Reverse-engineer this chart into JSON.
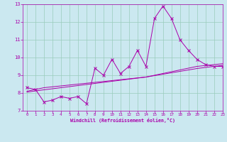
{
  "xlabel": "Windchill (Refroidissement éolien,°C)",
  "background_color": "#cbe8f0",
  "grid_color": "#99ccbb",
  "line_color": "#aa00aa",
  "x_values": [
    0,
    1,
    2,
    3,
    4,
    5,
    6,
    7,
    8,
    9,
    10,
    11,
    12,
    13,
    14,
    15,
    16,
    17,
    18,
    19,
    20,
    21,
    22,
    23
  ],
  "y_main": [
    8.3,
    8.2,
    7.5,
    7.6,
    7.8,
    7.7,
    7.8,
    7.4,
    9.4,
    9.0,
    9.9,
    9.1,
    9.5,
    10.4,
    9.5,
    12.2,
    12.9,
    12.2,
    11.0,
    10.4,
    9.9,
    9.6,
    9.5,
    9.5
  ],
  "y_line2": [
    8.1,
    8.2,
    8.3,
    8.35,
    8.4,
    8.45,
    8.5,
    8.55,
    8.6,
    8.65,
    8.7,
    8.75,
    8.8,
    8.85,
    8.9,
    9.0,
    9.1,
    9.2,
    9.3,
    9.4,
    9.5,
    9.55,
    9.6,
    9.65
  ],
  "y_line3": [
    8.05,
    8.12,
    8.18,
    8.24,
    8.3,
    8.36,
    8.42,
    8.48,
    8.54,
    8.6,
    8.66,
    8.72,
    8.78,
    8.84,
    8.9,
    8.98,
    9.06,
    9.14,
    9.22,
    9.3,
    9.38,
    9.44,
    9.5,
    9.56
  ],
  "ylim": [
    7,
    13
  ],
  "xlim": [
    -0.5,
    23
  ],
  "yticks": [
    7,
    8,
    9,
    10,
    11,
    12,
    13
  ],
  "xticks": [
    0,
    1,
    2,
    3,
    4,
    5,
    6,
    7,
    8,
    9,
    10,
    11,
    12,
    13,
    14,
    15,
    16,
    17,
    18,
    19,
    20,
    21,
    22,
    23
  ]
}
